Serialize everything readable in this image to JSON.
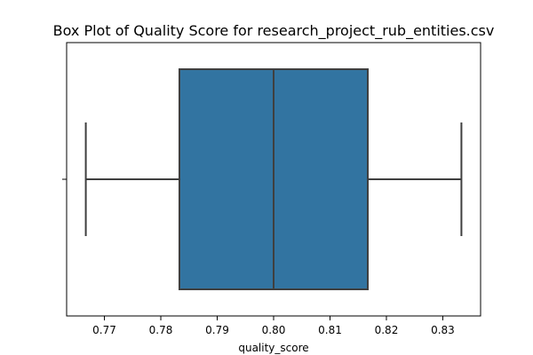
{
  "chart_data": {
    "type": "box",
    "title": "Box Plot of Quality Score for research_project_rub_entities.csv",
    "xlabel": "quality_score",
    "ylabel": "",
    "orientation": "horizontal",
    "xlim": [
      0.7633,
      0.8367
    ],
    "xticks": [
      0.77,
      0.78,
      0.79,
      0.8,
      0.81,
      0.82,
      0.83
    ],
    "xtick_labels": [
      "0.77",
      "0.78",
      "0.79",
      "0.80",
      "0.81",
      "0.82",
      "0.83"
    ],
    "grid": false,
    "legend": "none",
    "box": {
      "min": 0.7667,
      "q1": 0.7833,
      "median": 0.8,
      "q3": 0.8167,
      "max": 0.8333,
      "fill_color": "#3274a1",
      "line_color": "#3f3f3f"
    }
  }
}
